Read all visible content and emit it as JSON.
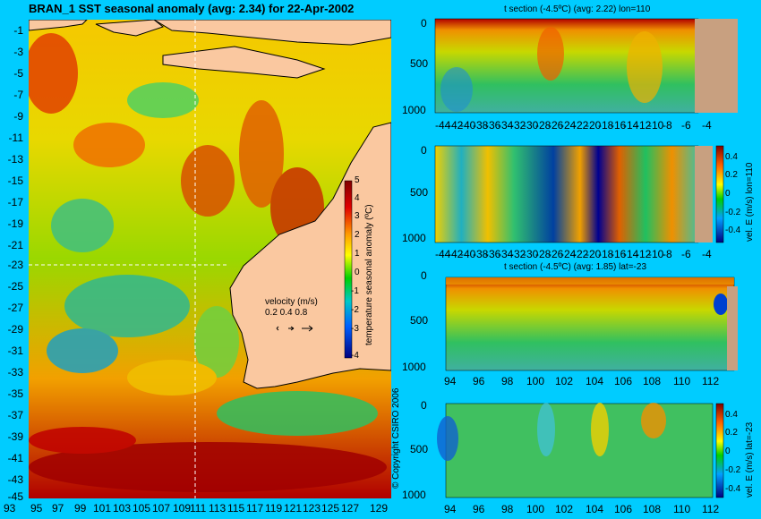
{
  "map": {
    "title": "BRAN_1  SST seasonal anomaly (avg: 2.34) for 22-Apr-2002",
    "ylabels": [
      "-1",
      "-3",
      "-5",
      "-7",
      "-9",
      "-11",
      "-13",
      "-15",
      "-17",
      "-19",
      "-21",
      "-23",
      "-25",
      "-27",
      "-29",
      "-31",
      "-33",
      "-35",
      "-37",
      "-39",
      "-41",
      "-43",
      "-45"
    ],
    "xlabels": [
      "93",
      "95",
      "97",
      "99",
      "101",
      "103",
      "105",
      "107",
      "109",
      "111",
      "113",
      "115",
      "117",
      "119",
      "121",
      "123",
      "125",
      "127",
      "129"
    ],
    "colorbar": {
      "ticks": [
        "5",
        "4",
        "3",
        "2",
        "1",
        "0",
        "-1",
        "-2",
        "-3",
        "-4"
      ],
      "label": "temperature seasonal anomaly (ºC)"
    },
    "velocity": {
      "title": "velocity (m/s)",
      "scale": "0.2 0.4 0.8"
    },
    "copyright": "© Copyright CSIRO 2006",
    "colors": {
      "land": "#fac8a0",
      "background": "#00ccff",
      "crosshair": "#ffffff"
    }
  },
  "panels": [
    {
      "title": "t section (-4.5ºC) (avg: 2.22) lon=110",
      "yticks": [
        "0",
        "500",
        "1000"
      ],
      "xticks": [
        "-44",
        "-42",
        "-40",
        "-38",
        "-36",
        "-34",
        "-32",
        "-30",
        "-28",
        "-26",
        "-24",
        "-22",
        "-20",
        "-18",
        "-16",
        "-14",
        "-12",
        "-10",
        "-8",
        "-6",
        "-4"
      ]
    },
    {
      "title": "",
      "yticks": [
        "0",
        "500",
        "1000"
      ],
      "xticks": [
        "-44",
        "-42",
        "-40",
        "-38",
        "-36",
        "-34",
        "-32",
        "-30",
        "-28",
        "-26",
        "-24",
        "-22",
        "-20",
        "-18",
        "-16",
        "-14",
        "-12",
        "-10",
        "-8",
        "-6",
        "-4"
      ],
      "cbar_ticks": [
        "0.4",
        "0.2",
        "0",
        "-0.2",
        "-0.4"
      ],
      "cbar_label": "vel. E (m/s) lon=110"
    },
    {
      "title": "t section (-4.5ºC) (avg: 1.85) lat=-23",
      "yticks": [
        "0",
        "500",
        "1000"
      ],
      "xticks": [
        "94",
        "96",
        "98",
        "100",
        "102",
        "104",
        "106",
        "108",
        "110",
        "112"
      ]
    },
    {
      "title": "",
      "yticks": [
        "0",
        "500",
        "1000"
      ],
      "xticks": [
        "94",
        "96",
        "98",
        "100",
        "102",
        "104",
        "106",
        "108",
        "110",
        "112"
      ],
      "cbar_ticks": [
        "0.4",
        "0.2",
        "0",
        "-0.2",
        "-0.4"
      ],
      "cbar_label": "vel. E (m/s) lat=-23"
    }
  ]
}
